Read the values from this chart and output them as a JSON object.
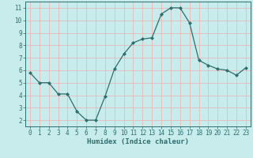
{
  "x": [
    0,
    1,
    2,
    3,
    4,
    5,
    6,
    7,
    8,
    9,
    10,
    11,
    12,
    13,
    14,
    15,
    16,
    17,
    18,
    19,
    20,
    21,
    22,
    23
  ],
  "y": [
    5.8,
    5.0,
    5.0,
    4.1,
    4.1,
    2.7,
    2.0,
    2.0,
    3.9,
    6.1,
    7.3,
    8.2,
    8.5,
    8.6,
    10.5,
    11.0,
    11.0,
    9.8,
    6.8,
    6.4,
    6.1,
    6.0,
    5.6,
    6.2
  ],
  "line_color": "#2d6e6e",
  "marker": "D",
  "marker_size": 2,
  "background_color": "#c8ecec",
  "grid_color": "#e8b8b8",
  "xlabel": "Humidex (Indice chaleur)",
  "xlim": [
    -0.5,
    23.5
  ],
  "ylim": [
    1.5,
    11.5
  ],
  "xticks": [
    0,
    1,
    2,
    3,
    4,
    5,
    6,
    7,
    8,
    9,
    10,
    11,
    12,
    13,
    14,
    15,
    16,
    17,
    18,
    19,
    20,
    21,
    22,
    23
  ],
  "yticks": [
    2,
    3,
    4,
    5,
    6,
    7,
    8,
    9,
    10,
    11
  ],
  "tick_color": "#2d6e6e",
  "label_fontsize": 6.5,
  "tick_fontsize": 5.5
}
